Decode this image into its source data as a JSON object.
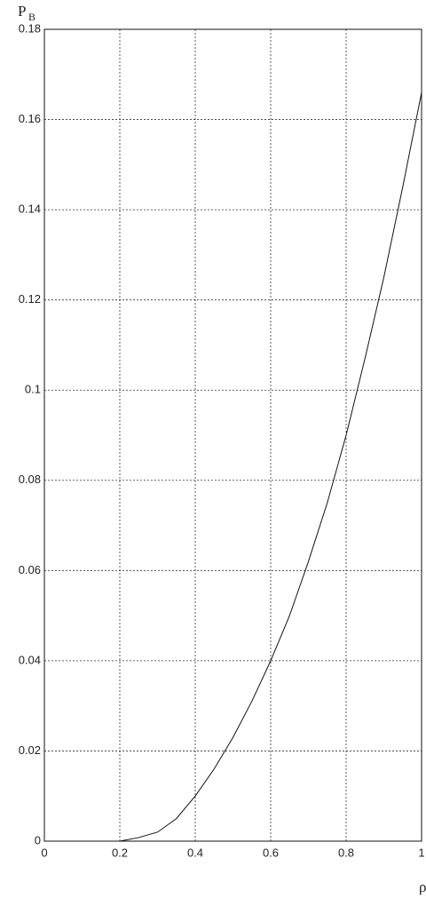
{
  "chart_data": {
    "type": "line",
    "ylabel": "P",
    "ylabel_subscript": "B",
    "xlabel": "ρ",
    "x": [
      0,
      0.1,
      0.2,
      0.25,
      0.3,
      0.35,
      0.4,
      0.45,
      0.5,
      0.55,
      0.6,
      0.65,
      0.7,
      0.75,
      0.8,
      0.85,
      0.9,
      0.95,
      1.0
    ],
    "series": [
      {
        "color": "#111111",
        "values": [
          0,
          0,
          0,
          0.0008,
          0.002,
          0.005,
          0.01,
          0.016,
          0.023,
          0.031,
          0.04,
          0.05,
          0.062,
          0.075,
          0.09,
          0.107,
          0.125,
          0.145,
          0.166
        ]
      }
    ],
    "xlim": [
      0,
      1
    ],
    "ylim": [
      0,
      0.18
    ],
    "xticks": [
      0,
      0.2,
      0.4,
      0.6,
      0.8,
      1
    ],
    "yticks": [
      0,
      0.02,
      0.04,
      0.06,
      0.08,
      0.1,
      0.12,
      0.14,
      0.16,
      0.18
    ],
    "grid": true
  }
}
